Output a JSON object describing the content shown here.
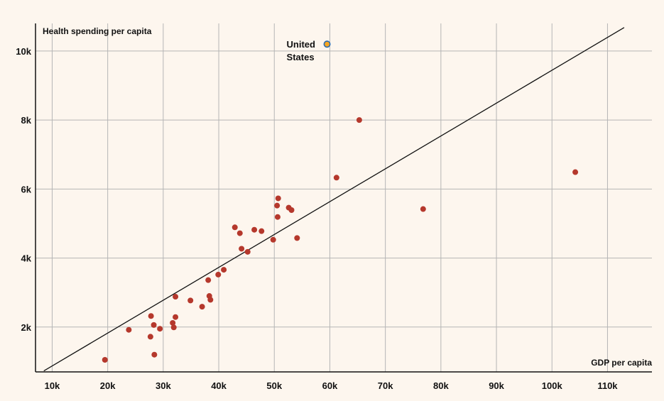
{
  "chart_data": {
    "type": "scatter",
    "xlabel": "GDP per capita",
    "ylabel": "Health spending per capita",
    "xlim": [
      7000,
      118000
    ],
    "ylim": [
      700,
      10800
    ],
    "x_ticks": [
      10000,
      20000,
      30000,
      40000,
      50000,
      60000,
      70000,
      80000,
      90000,
      100000,
      110000
    ],
    "x_tick_labels": [
      "10k",
      "20k",
      "30k",
      "40k",
      "50k",
      "60k",
      "70k",
      "80k",
      "90k",
      "100k",
      "110k"
    ],
    "y_ticks": [
      2000,
      4000,
      6000,
      8000,
      10000
    ],
    "y_tick_labels": [
      "2k",
      "4k",
      "6k",
      "8k",
      "10k"
    ],
    "grid": true,
    "trend_line": {
      "x": [
        8500,
        113000
      ],
      "y": [
        730,
        10680
      ]
    },
    "highlight": {
      "label_lines": [
        "United",
        "States"
      ],
      "x": 59500,
      "y": 10200,
      "color": "#f5a623",
      "stroke": "#2b6cb0"
    },
    "point_color": "#b5382c",
    "points": [
      {
        "x": 19500,
        "y": 1050
      },
      {
        "x": 23800,
        "y": 1920
      },
      {
        "x": 27700,
        "y": 1720
      },
      {
        "x": 27800,
        "y": 2320
      },
      {
        "x": 28300,
        "y": 2060
      },
      {
        "x": 28400,
        "y": 1200
      },
      {
        "x": 29400,
        "y": 1950
      },
      {
        "x": 31700,
        "y": 2120
      },
      {
        "x": 31900,
        "y": 1990
      },
      {
        "x": 32200,
        "y": 2290
      },
      {
        "x": 32200,
        "y": 2880
      },
      {
        "x": 34900,
        "y": 2770
      },
      {
        "x": 37000,
        "y": 2590
      },
      {
        "x": 38100,
        "y": 3360
      },
      {
        "x": 38300,
        "y": 2900
      },
      {
        "x": 38500,
        "y": 2790
      },
      {
        "x": 39900,
        "y": 3520
      },
      {
        "x": 40900,
        "y": 3660
      },
      {
        "x": 42900,
        "y": 4890
      },
      {
        "x": 43800,
        "y": 4720
      },
      {
        "x": 44100,
        "y": 4270
      },
      {
        "x": 45200,
        "y": 4180
      },
      {
        "x": 46400,
        "y": 4820
      },
      {
        "x": 47700,
        "y": 4780
      },
      {
        "x": 49800,
        "y": 4530
      },
      {
        "x": 50500,
        "y": 5520
      },
      {
        "x": 50600,
        "y": 5190
      },
      {
        "x": 50700,
        "y": 5730
      },
      {
        "x": 52600,
        "y": 5460
      },
      {
        "x": 53100,
        "y": 5390
      },
      {
        "x": 54100,
        "y": 4580
      },
      {
        "x": 61200,
        "y": 6330
      },
      {
        "x": 65300,
        "y": 8000
      },
      {
        "x": 76800,
        "y": 5420
      },
      {
        "x": 104200,
        "y": 6490
      }
    ]
  }
}
